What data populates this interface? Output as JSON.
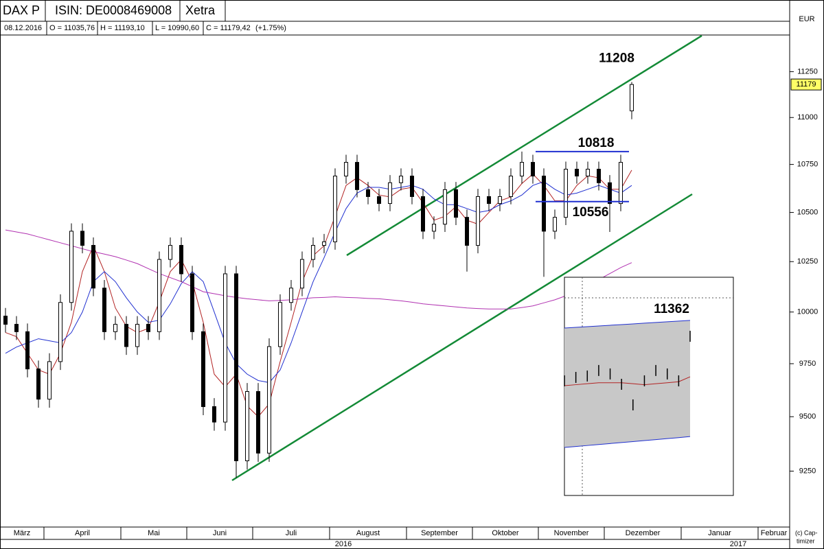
{
  "header": {
    "cells": [
      "DAX P",
      "ISIN: DE0008469008",
      "Xetra"
    ],
    "currency": "EUR",
    "quote": [
      "08.12.2016",
      "O = 11035,76",
      "H = 11193,10",
      "L = 10990,60",
      "C = 11179,42",
      "(+1.75%)"
    ],
    "years": [
      "2016",
      "2017"
    ],
    "copyright": [
      "(c) Cap-",
      "timizer"
    ]
  },
  "chart_data": [
    {
      "type": "candlestick",
      "log_scale": true,
      "ylim": [
        9000,
        11450
      ],
      "yticks": [
        9250,
        9500,
        9750,
        10000,
        10250,
        10500,
        10750,
        11000,
        11250
      ],
      "categories": [
        "März",
        null,
        null,
        null,
        "April",
        null,
        null,
        null,
        null,
        null,
        null,
        "Mai",
        null,
        null,
        null,
        null,
        null,
        "Juni",
        null,
        null,
        null,
        null,
        null,
        "Juli",
        null,
        null,
        null,
        null,
        null,
        null,
        "August",
        null,
        null,
        null,
        null,
        null,
        null,
        "September",
        null,
        null,
        null,
        null,
        null,
        "Oktober",
        null,
        null,
        null,
        null,
        null,
        "November",
        null,
        null,
        null,
        null,
        null,
        "Dezember",
        null,
        null,
        null,
        null,
        null,
        null,
        "Januar",
        null,
        null,
        null,
        null,
        null,
        null,
        "Februar",
        null,
        null
      ],
      "open": [
        9980,
        9940,
        9904,
        9725,
        9582,
        9760,
        10047,
        10404,
        10332,
        10118,
        9904,
        9940,
        9832,
        9940,
        9904,
        10261,
        10332,
        10189,
        9904,
        9547,
        9475,
        10189,
        9297,
        9618,
        9332,
        9832,
        10047,
        10118,
        10261,
        10332,
        10350,
        10689,
        10761,
        10618,
        10582,
        10546,
        10654,
        10689,
        10582,
        10404,
        10440,
        10618,
        10475,
        10332,
        10582,
        10546,
        10582,
        10689,
        10761,
        10689,
        10404,
        10475,
        10725,
        10689,
        10725,
        10654,
        10546,
        11035.76,
        null,
        null,
        null,
        null,
        null,
        null,
        null,
        null,
        null,
        null,
        null,
        null,
        null,
        null
      ],
      "high": [
        10020,
        9980,
        9944,
        9765,
        9800,
        10087,
        10444,
        10444,
        10372,
        10158,
        9980,
        9980,
        9980,
        9980,
        10301,
        10372,
        10372,
        10229,
        9944,
        9587,
        10229,
        10229,
        9658,
        9658,
        9872,
        10087,
        10158,
        10301,
        10372,
        10390,
        10729,
        10801,
        10801,
        10658,
        10622,
        10694,
        10729,
        10729,
        10622,
        10480,
        10658,
        10658,
        10515,
        10622,
        10622,
        10622,
        10729,
        10818,
        10801,
        10729,
        10515,
        10765,
        10765,
        10765,
        10765,
        10694,
        10801,
        11193.1,
        null,
        null,
        null,
        null,
        null,
        null,
        null,
        null,
        null,
        null,
        null,
        null,
        null,
        null
      ],
      "low": [
        9900,
        9864,
        9685,
        9542,
        9542,
        9720,
        10007,
        10292,
        10078,
        9864,
        9864,
        9792,
        9792,
        9864,
        9864,
        10221,
        10149,
        9864,
        9507,
        9435,
        9435,
        9220,
        9257,
        9292,
        9292,
        9792,
        10007,
        10078,
        10221,
        10292,
        10310,
        10649,
        10578,
        10542,
        10506,
        10506,
        10614,
        10542,
        10364,
        10364,
        10400,
        10435,
        10200,
        10292,
        10506,
        10506,
        10542,
        10649,
        10649,
        10174,
        10364,
        10435,
        10649,
        10649,
        10614,
        10400,
        10506,
        10990.6,
        null,
        null,
        null,
        null,
        null,
        null,
        null,
        null,
        null,
        null,
        null,
        null,
        null,
        null
      ],
      "close": [
        9940,
        9904,
        9725,
        9582,
        9760,
        10047,
        10404,
        10332,
        10118,
        9904,
        9940,
        9832,
        9940,
        9904,
        10261,
        10332,
        10189,
        9904,
        9547,
        9475,
        10189,
        9297,
        9618,
        9332,
        9832,
        10047,
        10118,
        10261,
        10332,
        10350,
        10689,
        10761,
        10618,
        10582,
        10546,
        10654,
        10689,
        10582,
        10404,
        10440,
        10618,
        10475,
        10332,
        10582,
        10546,
        10582,
        10689,
        10761,
        10689,
        10404,
        10475,
        10725,
        10689,
        10725,
        10654,
        10546,
        10761,
        11179.42,
        null,
        null,
        null,
        null,
        null,
        null,
        null,
        null,
        null,
        null,
        null,
        null,
        null,
        null
      ],
      "lines": [
        {
          "color": "#b22222",
          "values": [
            9900,
            9880,
            9800,
            9720,
            9700,
            9800,
            9950,
            10200,
            10330,
            10200,
            10020,
            9930,
            9900,
            9920,
            10050,
            10200,
            10260,
            10150,
            9950,
            9700,
            9640,
            9700,
            9550,
            9500,
            9560,
            9760,
            9950,
            10150,
            10280,
            10330,
            10480,
            10640,
            10680,
            10640,
            10590,
            10580,
            10620,
            10630,
            10550,
            10460,
            10480,
            10530,
            10460,
            10440,
            10500,
            10560,
            10580,
            10650,
            10700,
            10640,
            10560,
            10560,
            10640,
            10690,
            10680,
            10620,
            10620,
            10720,
            null,
            null,
            null,
            null,
            null,
            null,
            null,
            null,
            null,
            null,
            null,
            null,
            null,
            null
          ]
        },
        {
          "color": "#1f2fd0",
          "values": [
            9800,
            9830,
            9850,
            9870,
            9860,
            9850,
            9900,
            10000,
            10150,
            10200,
            10150,
            10070,
            10000,
            9950,
            9960,
            10040,
            10140,
            10200,
            10150,
            10000,
            9850,
            9750,
            9700,
            9670,
            9660,
            9720,
            9850,
            10000,
            10150,
            10270,
            10400,
            10520,
            10600,
            10630,
            10630,
            10620,
            10630,
            10640,
            10620,
            10570,
            10540,
            10540,
            10520,
            10500,
            10510,
            10540,
            10560,
            10590,
            10640,
            10660,
            10620,
            10590,
            10600,
            10620,
            10640,
            10620,
            10600,
            10640,
            null,
            null,
            null,
            null,
            null,
            null,
            null,
            null,
            null,
            null,
            null,
            null,
            null,
            null
          ]
        },
        {
          "color": "#b030b0",
          "values": [
            10410,
            10400,
            10390,
            10375,
            10360,
            10345,
            10330,
            10315,
            10300,
            10288,
            10275,
            10258,
            10240,
            10215,
            10190,
            10170,
            10150,
            10125,
            10100,
            10090,
            10080,
            10072,
            10065,
            10060,
            10055,
            10057,
            10060,
            10065,
            10070,
            10072,
            10075,
            10072,
            10070,
            10067,
            10065,
            10060,
            10055,
            10048,
            10040,
            10035,
            10030,
            10025,
            10020,
            10017,
            10015,
            10015,
            10015,
            10022,
            10030,
            10045,
            10060,
            10080,
            10100,
            10130,
            10160,
            10190,
            10220,
            10245,
            null,
            null,
            null,
            null,
            null,
            null,
            null,
            null,
            null,
            null,
            null,
            null,
            null,
            null
          ]
        }
      ],
      "up_color": "#ffffff",
      "down_color": "#000000",
      "level_color": "#1f2fd0",
      "levels": [
        10818,
        10556
      ],
      "target": 11208,
      "last_price": {
        "value": 11179.42,
        "label": "11179"
      }
    },
    {
      "type": "band",
      "ylim": [
        9600,
        11800
      ],
      "band_color": "#c8c8c8",
      "edge_color": "#1f2fd0",
      "upper": [
        11285,
        11292,
        11299,
        11306,
        11313,
        11320,
        11327,
        11334,
        11341,
        11348,
        11355,
        11362
      ],
      "lower": [
        10073,
        10083,
        10093,
        10103,
        10113,
        10123,
        10133,
        10143,
        10153,
        10163,
        10173,
        10184
      ],
      "price": [
        10749,
        10784,
        10798,
        10854,
        10819,
        10714,
        10505,
        10749,
        10854,
        10819,
        10749,
        11201
      ],
      "average": {
        "color": "#b22222",
        "values": [
          10700,
          10710,
          10720,
          10730,
          10730,
          10730,
          10720,
          10710,
          10720,
          10730,
          10740,
          10790
        ]
      }
    }
  ]
}
